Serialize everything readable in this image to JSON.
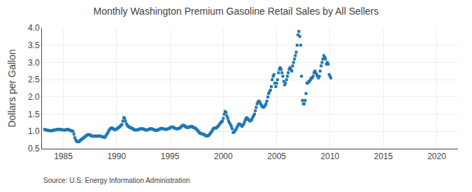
{
  "chart_data": {
    "type": "scatter",
    "title": "Monthly Washington Premium Gasoline Retail Sales by All Sellers",
    "ylabel": "Dollars per Gallon",
    "annotations": [
      "Source: U.S. Energy Information Administration"
    ],
    "marker": "square",
    "grid": true,
    "xlim": [
      1983.0,
      2022.0
    ],
    "ylim": [
      0.5,
      4.0
    ],
    "xticks": [
      1985,
      1990,
      1995,
      2000,
      2005,
      2010,
      2015,
      2020
    ],
    "yticks": [
      0.5,
      {
        "value": 1.0,
        "label": "1.0"
      },
      1.5,
      {
        "value": 2.0,
        "label": "2.0"
      },
      2.5,
      {
        "value": 3.0,
        "label": "3.0"
      },
      3.5,
      {
        "value": 4.0,
        "label": "4.0"
      }
    ],
    "x": [
      1983.25,
      1983.33,
      1983.42,
      1983.5,
      1983.58,
      1983.67,
      1983.75,
      1983.83,
      1983.92,
      1984.0,
      1984.08,
      1984.17,
      1984.25,
      1984.33,
      1984.42,
      1984.5,
      1984.58,
      1984.67,
      1984.75,
      1984.83,
      1984.92,
      1985.0,
      1985.08,
      1985.17,
      1985.25,
      1985.33,
      1985.42,
      1985.5,
      1985.58,
      1985.67,
      1985.75,
      1985.83,
      1985.92,
      1986.0,
      1986.08,
      1986.17,
      1986.25,
      1986.33,
      1986.42,
      1986.5,
      1986.58,
      1986.67,
      1986.75,
      1986.83,
      1986.92,
      1987.0,
      1987.08,
      1987.17,
      1987.25,
      1987.33,
      1987.42,
      1987.5,
      1987.58,
      1987.67,
      1987.75,
      1987.83,
      1987.92,
      1988.0,
      1988.08,
      1988.17,
      1988.25,
      1988.33,
      1988.42,
      1988.5,
      1988.58,
      1988.67,
      1988.75,
      1988.83,
      1988.92,
      1989.0,
      1989.08,
      1989.17,
      1989.25,
      1989.33,
      1989.42,
      1989.5,
      1989.58,
      1989.67,
      1989.75,
      1989.83,
      1989.92,
      1990.0,
      1990.08,
      1990.17,
      1990.25,
      1990.33,
      1990.42,
      1990.5,
      1990.58,
      1990.67,
      1990.75,
      1990.83,
      1990.92,
      1991.0,
      1991.08,
      1991.17,
      1991.25,
      1991.33,
      1991.42,
      1991.5,
      1991.58,
      1991.67,
      1991.75,
      1991.83,
      1991.92,
      1992.0,
      1992.08,
      1992.17,
      1992.25,
      1992.33,
      1992.42,
      1992.5,
      1992.58,
      1992.67,
      1992.75,
      1992.83,
      1992.92,
      1993.0,
      1993.08,
      1993.17,
      1993.25,
      1993.33,
      1993.42,
      1993.5,
      1993.58,
      1993.67,
      1993.75,
      1993.83,
      1993.92,
      1994.0,
      1994.08,
      1994.17,
      1994.25,
      1994.33,
      1994.42,
      1994.5,
      1994.58,
      1994.67,
      1994.75,
      1994.83,
      1994.92,
      1995.0,
      1995.08,
      1995.17,
      1995.25,
      1995.33,
      1995.42,
      1995.5,
      1995.58,
      1995.67,
      1995.75,
      1995.83,
      1995.92,
      1996.0,
      1996.08,
      1996.17,
      1996.25,
      1996.33,
      1996.42,
      1996.5,
      1996.58,
      1996.67,
      1996.75,
      1996.83,
      1996.92,
      1997.0,
      1997.08,
      1997.17,
      1997.25,
      1997.33,
      1997.42,
      1997.5,
      1997.58,
      1997.67,
      1997.75,
      1997.83,
      1997.92,
      1998.0,
      1998.08,
      1998.17,
      1998.25,
      1998.33,
      1998.42,
      1998.5,
      1998.58,
      1998.67,
      1998.75,
      1998.83,
      1998.92,
      1999.0,
      1999.08,
      1999.17,
      1999.25,
      1999.33,
      1999.42,
      1999.5,
      1999.58,
      1999.67,
      1999.75,
      1999.83,
      1999.92,
      2000.0,
      2000.08,
      2000.17,
      2000.25,
      2000.33,
      2000.42,
      2000.5,
      2000.58,
      2000.67,
      2000.75,
      2000.83,
      2000.92,
      2001.0,
      2001.08,
      2001.17,
      2001.25,
      2001.33,
      2001.42,
      2001.5,
      2001.58,
      2001.67,
      2001.75,
      2001.83,
      2001.92,
      2002.0,
      2002.08,
      2002.17,
      2002.25,
      2002.33,
      2002.42,
      2002.5,
      2002.58,
      2002.67,
      2002.75,
      2002.83,
      2002.92,
      2003.0,
      2003.08,
      2003.17,
      2003.25,
      2003.33,
      2003.42,
      2003.5,
      2003.58,
      2003.67,
      2003.75,
      2003.83,
      2003.92,
      2004.0,
      2004.08,
      2004.17,
      2004.25,
      2004.33,
      2004.42,
      2004.5,
      2004.58,
      2004.67,
      2004.75,
      2004.83,
      2004.92,
      2005.0,
      2005.08,
      2005.17,
      2005.25,
      2005.33,
      2005.42,
      2005.5,
      2005.58,
      2005.67,
      2005.75,
      2005.83,
      2005.92,
      2006.0,
      2006.08,
      2006.17,
      2006.25,
      2006.33,
      2006.42,
      2006.5,
      2006.58,
      2006.67,
      2006.75,
      2006.83,
      2006.92,
      2007.0,
      2007.08,
      2007.17,
      2007.25,
      2007.33,
      2007.42,
      2007.5,
      2007.58,
      2007.67,
      2007.75,
      2007.83,
      2007.92,
      2008.0,
      2008.08,
      2008.17,
      2008.25,
      2008.33,
      2008.42,
      2008.5,
      2008.58,
      2008.67,
      2008.75,
      2008.83,
      2008.92,
      2009.0,
      2009.08,
      2009.17,
      2009.25,
      2009.33,
      2009.42,
      2009.5,
      2009.58,
      2009.67,
      2009.75,
      2009.83,
      2009.92,
      2010.0,
      2010.08
    ],
    "values": [
      1.06,
      1.05,
      1.04,
      1.04,
      1.03,
      1.03,
      1.02,
      1.02,
      1.02,
      1.03,
      1.04,
      1.04,
      1.05,
      1.05,
      1.06,
      1.06,
      1.06,
      1.06,
      1.06,
      1.05,
      1.05,
      1.04,
      1.04,
      1.04,
      1.05,
      1.06,
      1.06,
      1.05,
      1.04,
      1.03,
      1.02,
      1.01,
      1.0,
      0.92,
      0.82,
      0.75,
      0.72,
      0.7,
      0.7,
      0.71,
      0.74,
      0.76,
      0.78,
      0.8,
      0.82,
      0.84,
      0.86,
      0.88,
      0.9,
      0.91,
      0.91,
      0.9,
      0.88,
      0.87,
      0.86,
      0.86,
      0.87,
      0.87,
      0.86,
      0.86,
      0.87,
      0.87,
      0.87,
      0.86,
      0.85,
      0.85,
      0.84,
      0.83,
      0.83,
      0.88,
      0.92,
      0.96,
      1.01,
      1.05,
      1.08,
      1.1,
      1.1,
      1.08,
      1.06,
      1.05,
      1.06,
      1.07,
      1.09,
      1.11,
      1.13,
      1.15,
      1.18,
      1.2,
      1.3,
      1.4,
      1.38,
      1.3,
      1.22,
      1.18,
      1.15,
      1.13,
      1.12,
      1.1,
      1.1,
      1.08,
      1.06,
      1.05,
      1.04,
      1.04,
      1.05,
      1.05,
      1.06,
      1.07,
      1.08,
      1.08,
      1.08,
      1.07,
      1.06,
      1.05,
      1.04,
      1.04,
      1.05,
      1.06,
      1.07,
      1.08,
      1.08,
      1.07,
      1.06,
      1.05,
      1.04,
      1.03,
      1.03,
      1.04,
      1.05,
      1.06,
      1.08,
      1.09,
      1.09,
      1.08,
      1.07,
      1.07,
      1.06,
      1.06,
      1.07,
      1.08,
      1.09,
      1.1,
      1.12,
      1.13,
      1.13,
      1.12,
      1.1,
      1.09,
      1.08,
      1.07,
      1.08,
      1.09,
      1.1,
      1.12,
      1.15,
      1.17,
      1.18,
      1.17,
      1.15,
      1.13,
      1.12,
      1.11,
      1.12,
      1.13,
      1.14,
      1.15,
      1.14,
      1.12,
      1.11,
      1.1,
      1.08,
      1.06,
      1.03,
      1.0,
      0.97,
      0.95,
      0.94,
      0.93,
      0.92,
      0.92,
      0.9,
      0.88,
      0.87,
      0.87,
      0.88,
      0.9,
      0.93,
      0.97,
      1.0,
      1.05,
      1.08,
      1.1,
      1.1,
      1.1,
      1.12,
      1.15,
      1.18,
      1.22,
      1.25,
      1.28,
      1.3,
      1.38,
      1.5,
      1.58,
      1.55,
      1.45,
      1.38,
      1.3,
      1.25,
      1.2,
      1.15,
      1.08,
      0.97,
      0.98,
      1.02,
      1.05,
      1.1,
      1.15,
      1.2,
      1.22,
      1.2,
      1.18,
      1.15,
      1.18,
      1.22,
      1.28,
      1.35,
      1.4,
      1.38,
      1.35,
      1.32,
      1.3,
      1.32,
      1.35,
      1.4,
      1.45,
      1.5,
      1.6,
      1.7,
      1.8,
      1.85,
      1.88,
      1.85,
      1.8,
      1.75,
      1.72,
      1.7,
      1.72,
      1.75,
      1.8,
      1.88,
      2.0,
      2.1,
      2.15,
      2.2,
      2.3,
      2.5,
      2.6,
      2.65,
      2.4,
      2.3,
      2.4,
      2.5,
      2.7,
      2.8,
      2.85,
      2.8,
      2.7,
      2.6,
      2.45,
      2.35,
      2.4,
      2.5,
      2.6,
      2.7,
      2.8,
      2.85,
      2.8,
      2.75,
      2.9,
      3.0,
      3.1,
      3.2,
      3.3,
      3.5,
      3.8,
      3.9,
      3.75,
      3.5,
      2.6,
      1.9,
      1.8,
      1.8,
      1.9,
      2.1,
      2.4,
      2.4,
      2.45,
      2.45,
      2.5,
      2.55,
      2.55,
      2.6,
      2.7,
      2.75,
      2.7,
      2.65,
      2.6,
      2.55,
      2.6,
      2.75,
      2.9,
      3.0,
      3.1,
      3.2,
      3.15,
      3.1,
      2.95,
      3.0,
      2.95,
      2.65,
      2.6,
      2.55
    ]
  }
}
